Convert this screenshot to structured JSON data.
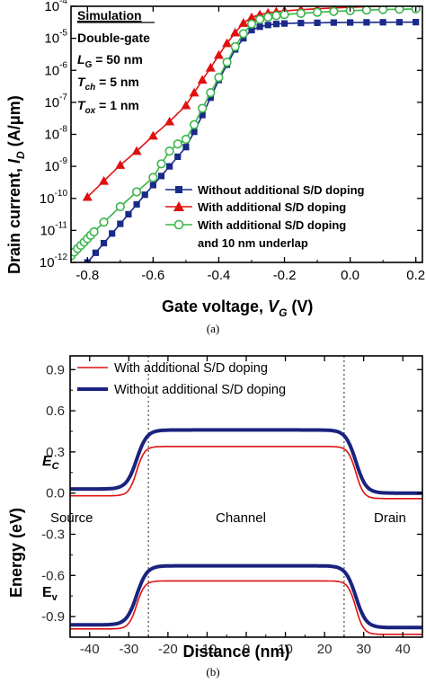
{
  "chart_data": [
    {
      "type": "line",
      "panel_label": "(a)",
      "xlabel": "Gate voltage, V_G (V)",
      "ylabel": "Drain current, I_D (A/μm)",
      "xscale": "linear",
      "yscale": "log",
      "xlim": [
        -0.85,
        0.22
      ],
      "ylim": [
        1e-12,
        0.0001
      ],
      "xticks": [
        -0.8,
        -0.6,
        -0.4,
        -0.2,
        0.0,
        0.2
      ],
      "xtick_labels": [
        "-0.8",
        "-0.6",
        "-0.4",
        "-0.2",
        "0.0",
        "0.2"
      ],
      "yticks": [
        1e-12,
        1e-11,
        1e-10,
        1e-09,
        1e-08,
        1e-07,
        1e-06,
        1e-05,
        0.0001
      ],
      "ytick_labels": [
        {
          "base": "10",
          "exp": "-12"
        },
        {
          "base": "10",
          "exp": "-11"
        },
        {
          "base": "10",
          "exp": "-10"
        },
        {
          "base": "10",
          "exp": "-9"
        },
        {
          "base": "10",
          "exp": "-8"
        },
        {
          "base": "10",
          "exp": "-7"
        },
        {
          "base": "10",
          "exp": "-6"
        },
        {
          "base": "10",
          "exp": "-5"
        },
        {
          "base": "10",
          "exp": "-4"
        }
      ],
      "annotations": {
        "title": "Simulation",
        "lines": [
          "Double-gate",
          "L_G = 50 nm",
          "T_ch = 5 nm",
          "T_ox = 1 nm"
        ]
      },
      "legend_position": "lower-right",
      "series": [
        {
          "name": "Without additional S/D doping",
          "color": "#1a2a8a",
          "marker": "filled-square",
          "x": [
            -0.8,
            -0.775,
            -0.75,
            -0.725,
            -0.7,
            -0.675,
            -0.65,
            -0.625,
            -0.6,
            -0.575,
            -0.55,
            -0.525,
            -0.5,
            -0.475,
            -0.45,
            -0.425,
            -0.4,
            -0.375,
            -0.35,
            -0.325,
            -0.3,
            -0.275,
            -0.25,
            -0.225,
            -0.2,
            -0.15,
            -0.1,
            -0.05,
            0.0,
            0.05,
            0.1,
            0.15,
            0.2
          ],
          "y": [
            1e-12,
            2e-12,
            4e-12,
            8e-12,
            1.6e-11,
            3.2e-11,
            6.5e-11,
            1.3e-10,
            2.6e-10,
            5e-10,
            1e-09,
            2e-09,
            4e-09,
            1.2e-08,
            4e-08,
            1.4e-07,
            5e-07,
            1.5e-06,
            4.5e-06,
            1e-05,
            1.8e-05,
            2.3e-05,
            2.6e-05,
            2.8e-05,
            2.9e-05,
            3e-05,
            3.05e-05,
            3.1e-05,
            3.12e-05,
            3.15e-05,
            3.17e-05,
            3.18e-05,
            3.2e-05
          ]
        },
        {
          "name": "With additional S/D doping",
          "color": "#e01010",
          "marker": "filled-triangle",
          "x": [
            -0.8,
            -0.75,
            -0.7,
            -0.65,
            -0.6,
            -0.55,
            -0.5,
            -0.475,
            -0.45,
            -0.425,
            -0.4,
            -0.375,
            -0.35,
            -0.325,
            -0.3,
            -0.275,
            -0.25,
            -0.225,
            -0.2,
            -0.15,
            -0.1,
            -0.05,
            0.0,
            0.05,
            0.1,
            0.15,
            0.2
          ],
          "y": [
            1.1e-10,
            3.5e-10,
            1.1e-09,
            3e-09,
            9e-09,
            2.5e-08,
            8e-08,
            2e-07,
            5e-07,
            1.2e-06,
            3e-06,
            7e-06,
            1.5e-05,
            3e-05,
            4.5e-05,
            5.5e-05,
            6.2e-05,
            6.8e-05,
            7.2e-05,
            7.8e-05,
            8.4e-05,
            8.9e-05,
            9.3e-05,
            9.7e-05,
            0.0001,
            0.000103,
            0.000105
          ]
        },
        {
          "name": "With additional S/D doping and 10 nm underlap",
          "color": "#3ab54a",
          "marker": "open-circle",
          "x": [
            -0.85,
            -0.84,
            -0.83,
            -0.82,
            -0.81,
            -0.8,
            -0.79,
            -0.78,
            -0.75,
            -0.7,
            -0.65,
            -0.6,
            -0.575,
            -0.55,
            -0.525,
            -0.5,
            -0.475,
            -0.45,
            -0.425,
            -0.4,
            -0.375,
            -0.35,
            -0.325,
            -0.3,
            -0.275,
            -0.25,
            -0.225,
            -0.2,
            -0.15,
            -0.1,
            -0.05,
            0.0,
            0.05,
            0.1,
            0.15,
            0.2
          ],
          "y": [
            1.6e-12,
            2.1e-12,
            2.7e-12,
            3.4e-12,
            4.3e-12,
            5.5e-12,
            7e-12,
            9e-12,
            1.8e-11,
            5.5e-11,
            1.6e-10,
            4.5e-10,
            1.2e-09,
            3e-09,
            5e-09,
            7e-09,
            2e-08,
            6.5e-08,
            2e-07,
            6e-07,
            1.8e-06,
            5.5e-06,
            1.4e-05,
            2.8e-05,
            3.9e-05,
            4.6e-05,
            5.1e-05,
            5.5e-05,
            6e-05,
            6.5e-05,
            6.9e-05,
            7.3e-05,
            7.6e-05,
            7.9e-05,
            8.1e-05,
            8.3e-05
          ]
        }
      ],
      "legend": [
        {
          "label": "With additional S/D doping",
          "cont": "and 10 nm underlap"
        }
      ]
    },
    {
      "type": "line",
      "panel_label": "(b)",
      "xlabel": "Distance (nm)",
      "ylabel": "Energy (eV)",
      "xlim": [
        -45,
        45
      ],
      "ylim": [
        -1.05,
        1.0
      ],
      "xticks": [
        -40,
        -30,
        -20,
        -10,
        0,
        10,
        20,
        30,
        40
      ],
      "xtick_labels": [
        "-40",
        "-30",
        "-20",
        "-10",
        "0",
        "10",
        "20",
        "30",
        "40"
      ],
      "yticks": [
        -0.9,
        -0.6,
        -0.3,
        0.0,
        0.3,
        0.6,
        0.9
      ],
      "ytick_labels": [
        "-0.9",
        "-0.6",
        "-0.3",
        "0.0",
        "0.3",
        "0.6",
        "0.9"
      ],
      "vertical_lines": [
        -25,
        25
      ],
      "region_labels": [
        "Source",
        "Channel",
        "Drain"
      ],
      "band_labels": [
        {
          "base": "E",
          "sub": "C"
        },
        {
          "base": "E",
          "sub": "v"
        }
      ],
      "legend_position": "top-left",
      "series": [
        {
          "name": "With additional S/D doping",
          "color": "#e01010",
          "bands": {
            "conduction": {
              "source": -0.02,
              "channel": 0.34,
              "drain": -0.04
            },
            "valence": {
              "source": -0.99,
              "channel": -0.64,
              "drain": -1.03
            }
          }
        },
        {
          "name": "Without additional S/D doping",
          "color": "#1a237e",
          "bands": {
            "conduction": {
              "source": 0.03,
              "channel": 0.46,
              "drain": 0.0
            },
            "valence": {
              "source": -0.96,
              "channel": -0.53,
              "drain": -0.98
            }
          }
        }
      ]
    }
  ]
}
